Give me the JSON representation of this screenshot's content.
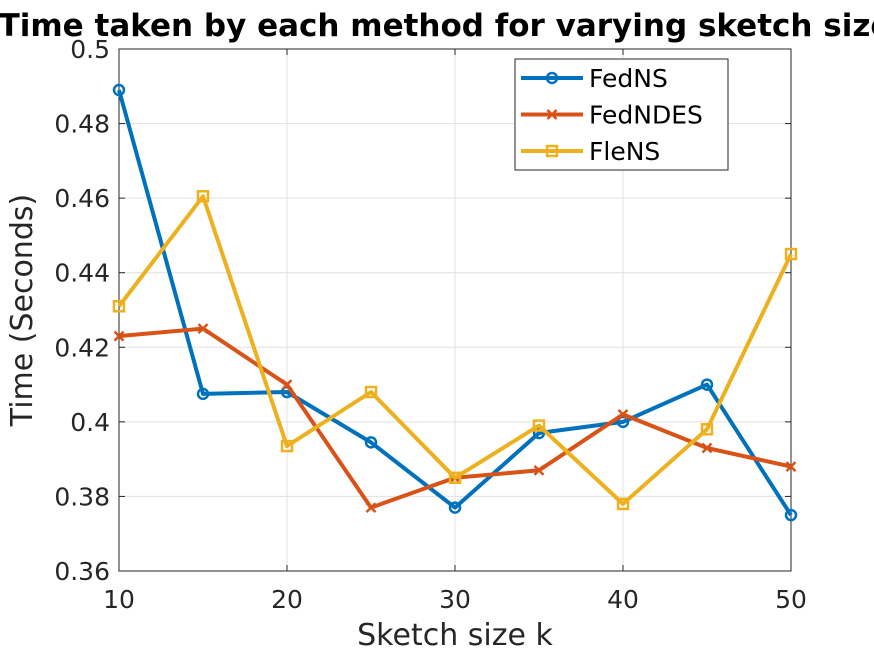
{
  "chart_data": {
    "type": "line",
    "title": "Time taken by each method for varying sketch size",
    "xlabel": "Sketch size k",
    "ylabel": "Time (Seconds)",
    "xlim": [
      10,
      50
    ],
    "ylim": [
      0.36,
      0.5
    ],
    "xticks": [
      "10",
      "20",
      "30",
      "40",
      "50"
    ],
    "yticks": [
      "0.36",
      "0.38",
      "0.4",
      "0.42",
      "0.44",
      "0.46",
      "0.48",
      "0.5"
    ],
    "grid": true,
    "legend_position": "top-right",
    "x": [
      10,
      15,
      20,
      25,
      30,
      35,
      40,
      45,
      50
    ],
    "series": [
      {
        "name": "FedNS",
        "color": "#0072BD",
        "marker": "circle",
        "values": [
          0.489,
          0.4075,
          0.408,
          0.3945,
          0.377,
          0.397,
          0.4,
          0.41,
          0.375
        ]
      },
      {
        "name": "FedNDES",
        "color": "#D95319",
        "marker": "x",
        "values": [
          0.423,
          0.425,
          0.41,
          0.377,
          0.385,
          0.387,
          0.402,
          0.393,
          0.388
        ]
      },
      {
        "name": "FleNS",
        "color": "#EDB120",
        "marker": "square",
        "values": [
          0.431,
          0.4605,
          0.3935,
          0.408,
          0.385,
          0.399,
          0.378,
          0.398,
          0.445
        ]
      }
    ]
  }
}
